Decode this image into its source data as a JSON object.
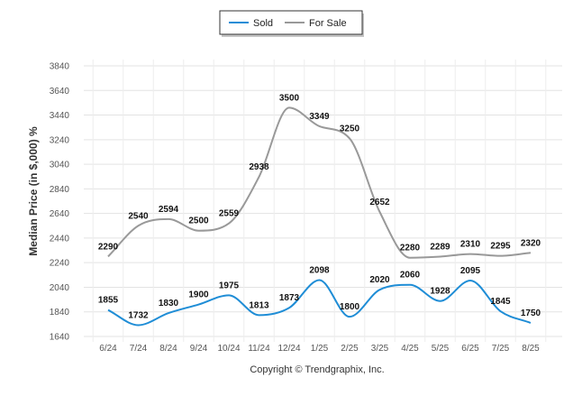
{
  "chart_data": {
    "type": "line",
    "ylabel": "Median Price (in $,000) %",
    "footer": "Copyright © Trendgraphix, Inc.",
    "ylim": [
      1640,
      3840
    ],
    "yticks": [
      1640,
      1840,
      2040,
      2240,
      2440,
      2640,
      2840,
      3040,
      3240,
      3440,
      3640,
      3840
    ],
    "categories": [
      "6/24",
      "7/24",
      "8/24",
      "9/24",
      "10/24",
      "11/24",
      "12/24",
      "1/25",
      "2/25",
      "3/25",
      "4/25",
      "5/25",
      "6/25",
      "7/25",
      "8/25"
    ],
    "legend_position": "top-center",
    "grid": true,
    "series": [
      {
        "name": "Sold",
        "color": "#1f8dd6",
        "values": [
          1855,
          1732,
          1830,
          1900,
          1975,
          1813,
          1873,
          2098,
          1800,
          2020,
          2060,
          1928,
          2095,
          1845,
          1750
        ]
      },
      {
        "name": "For Sale",
        "color": "#999999",
        "values": [
          2290,
          2540,
          2594,
          2500,
          2559,
          2938,
          3500,
          3349,
          3250,
          2652,
          2280,
          2289,
          2310,
          2295,
          2320
        ]
      }
    ]
  }
}
